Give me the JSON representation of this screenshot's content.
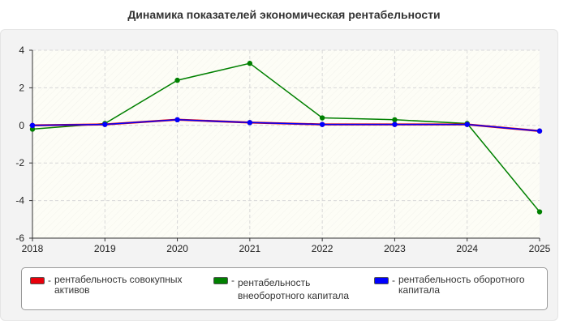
{
  "chart_data": {
    "type": "line",
    "title": "Динамика показателей экономическая рентабельности",
    "x": [
      "2018",
      "2019",
      "2020",
      "2021",
      "2022",
      "2023",
      "2024",
      "2025"
    ],
    "ylim": [
      -6,
      4
    ],
    "yticks": [
      "4",
      "2",
      "0",
      "-2",
      "-4",
      "-6"
    ],
    "grid": true,
    "legend_position": "bottom",
    "series": [
      {
        "name": "рентабельность совокупных активов",
        "color": "#e8000b",
        "values": [
          0,
          0.05,
          0.3,
          0.15,
          0.05,
          0.05,
          0.05,
          -0.3
        ]
      },
      {
        "name": "рентабельность внеоборотного капитала",
        "color": "#008000",
        "values": [
          -0.2,
          0.1,
          2.4,
          3.3,
          0.4,
          0.3,
          0.1,
          -4.6
        ]
      },
      {
        "name": "рентабельность оборотного капитала",
        "color": "#0000ff",
        "values": [
          0,
          0.05,
          0.3,
          0.15,
          0.05,
          0.05,
          0.05,
          -0.3
        ]
      }
    ],
    "legend_dash": "-"
  }
}
